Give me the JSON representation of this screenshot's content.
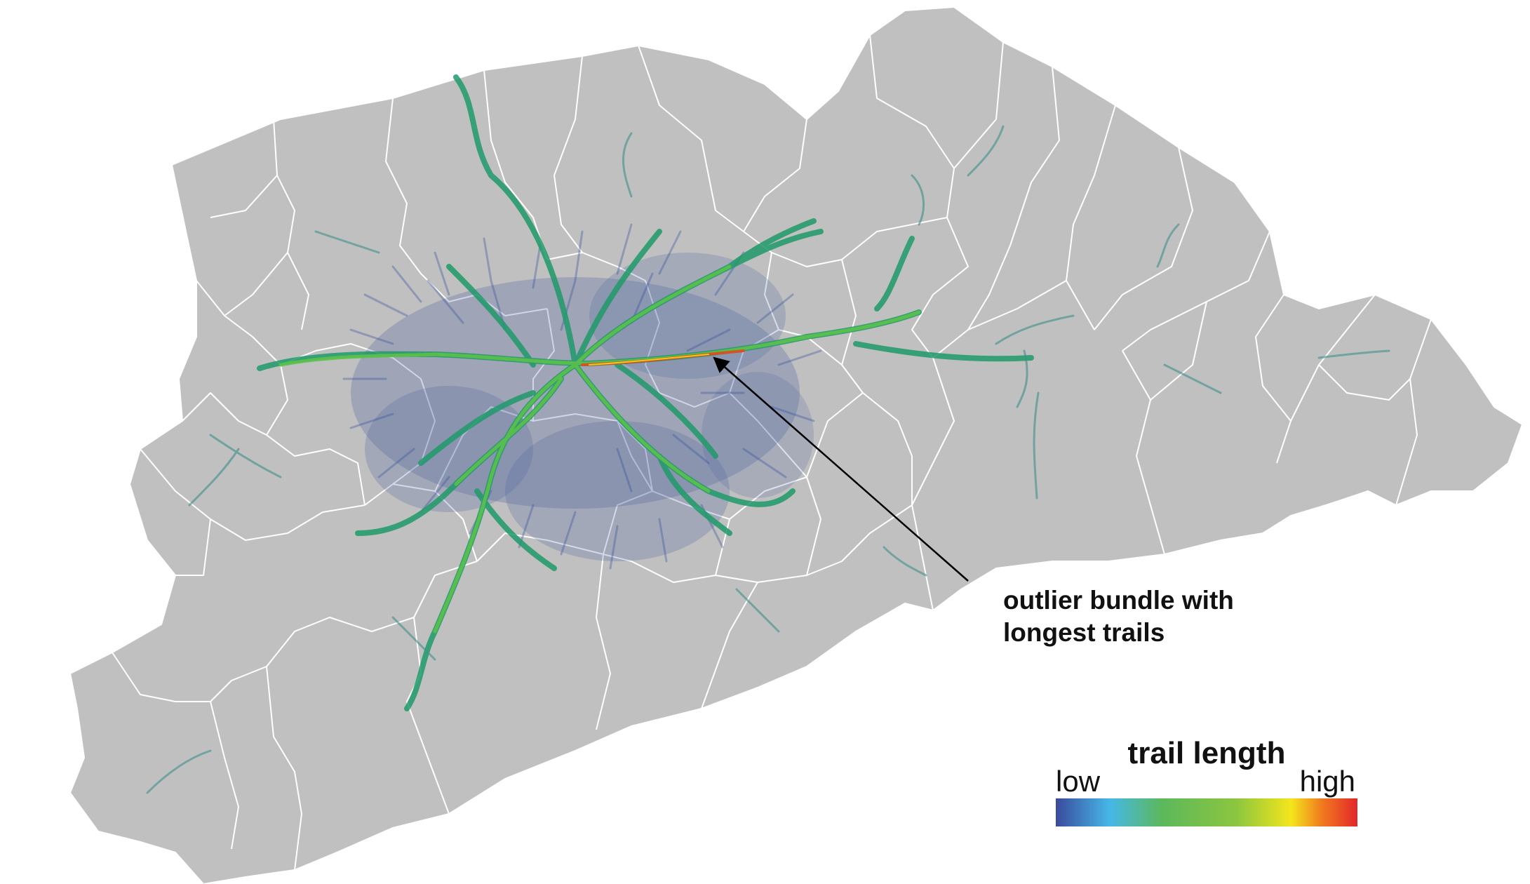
{
  "map": {
    "region_fill": "#c0c0c0",
    "border_color": "#ffffff"
  },
  "annotation": {
    "line1": "outlier bundle with",
    "line2": "longest trails"
  },
  "legend": {
    "title": "trail length",
    "low_label": "low",
    "high_label": "high",
    "colors": [
      "#3a4a9c",
      "#46b8e8",
      "#5cb85c",
      "#8cc63f",
      "#f4e61c",
      "#f07c1e",
      "#e3262a"
    ]
  }
}
